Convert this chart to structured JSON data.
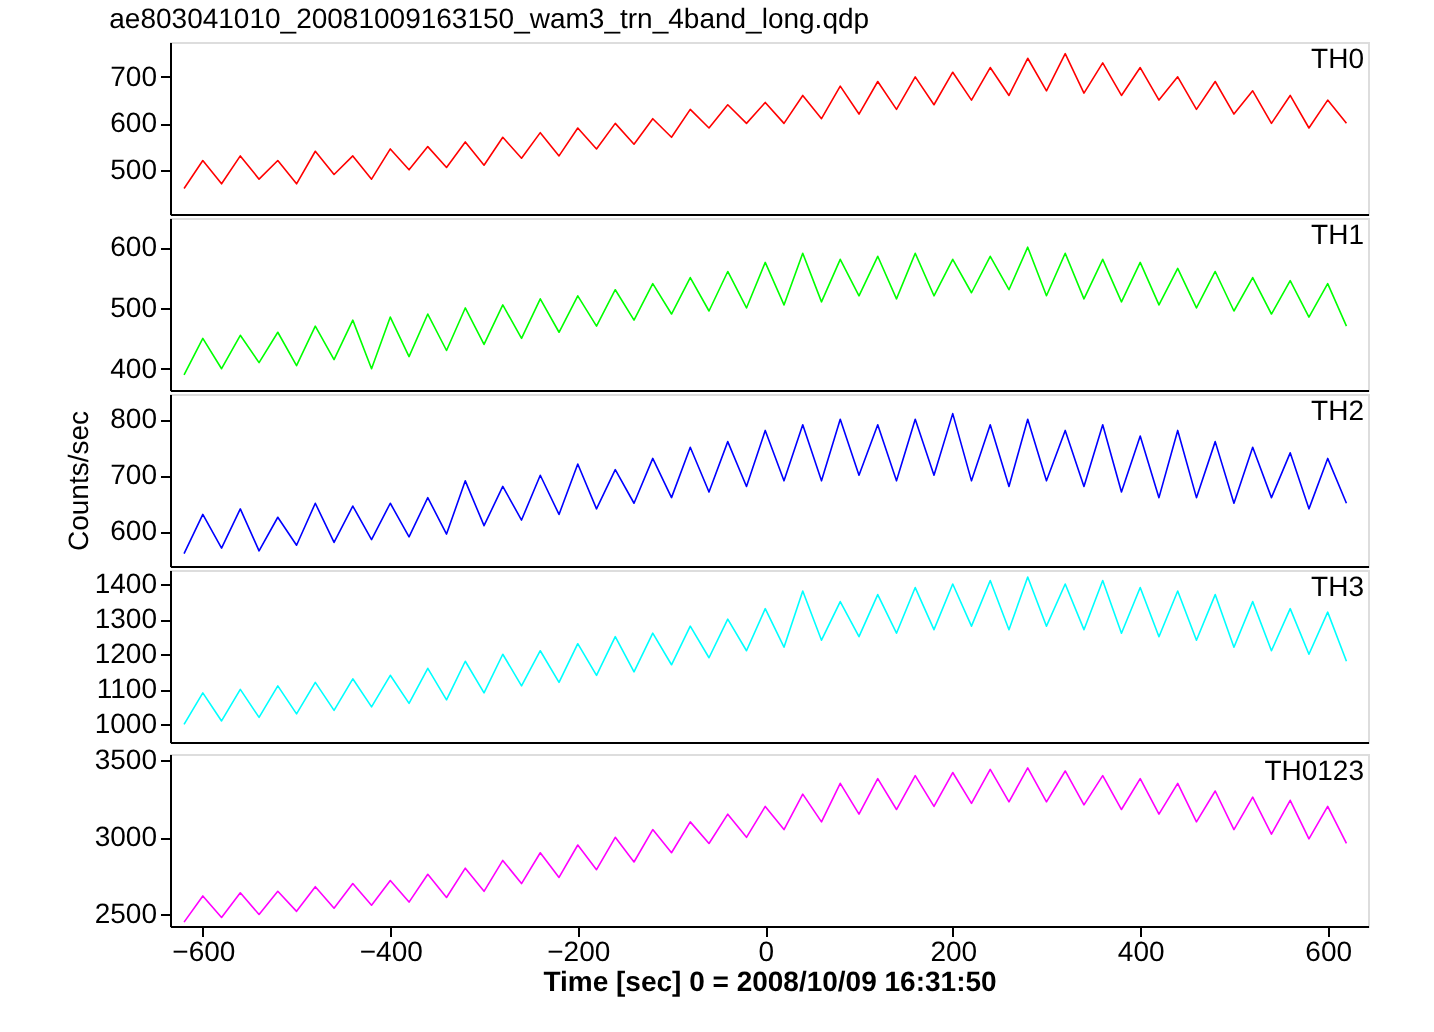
{
  "chart_data": [
    {
      "type": "line",
      "title": "ae803041010_20081009163150_wam3_trn_4band_long.qdp",
      "x": [
        -620,
        -600,
        -580,
        -560,
        -540,
        -520,
        -500,
        -480,
        -460,
        -440,
        -420,
        -400,
        -380,
        -360,
        -340,
        -320,
        -300,
        -280,
        -260,
        -240,
        -220,
        -200,
        -180,
        -160,
        -140,
        -120,
        -100,
        -80,
        -60,
        -40,
        -20,
        0,
        20,
        40,
        60,
        80,
        100,
        120,
        140,
        160,
        180,
        200,
        220,
        240,
        260,
        280,
        300,
        320,
        340,
        360,
        380,
        400,
        420,
        440,
        460,
        480,
        500,
        520,
        540,
        560,
        580,
        600,
        620
      ],
      "series": [
        {
          "name": "TH0",
          "color": "#ff0000",
          "values": [
            460,
            520,
            470,
            530,
            480,
            520,
            470,
            540,
            490,
            530,
            480,
            545,
            500,
            550,
            505,
            560,
            510,
            570,
            525,
            580,
            530,
            590,
            545,
            600,
            555,
            610,
            570,
            630,
            590,
            640,
            600,
            645,
            600,
            660,
            610,
            680,
            620,
            690,
            630,
            700,
            640,
            710,
            650,
            720,
            660,
            740,
            670,
            750,
            665,
            730,
            660,
            720,
            650,
            700,
            630,
            690,
            620,
            670,
            600,
            660,
            590,
            650,
            600
          ]
        }
      ],
      "xlim": [
        -635,
        643
      ],
      "xticks": [
        -600,
        -400,
        -200,
        0,
        200,
        400,
        600
      ],
      "ylim": [
        405,
        775
      ],
      "yticks": [
        500,
        600,
        700
      ],
      "tick_labels": "y",
      "legend": false,
      "grid": false
    },
    {
      "type": "line",
      "x": [
        -620,
        -600,
        -580,
        -560,
        -540,
        -520,
        -500,
        -480,
        -460,
        -440,
        -420,
        -400,
        -380,
        -360,
        -340,
        -320,
        -300,
        -280,
        -260,
        -240,
        -220,
        -200,
        -180,
        -160,
        -140,
        -120,
        -100,
        -80,
        -60,
        -40,
        -20,
        0,
        20,
        40,
        60,
        80,
        100,
        120,
        140,
        160,
        180,
        200,
        220,
        240,
        260,
        280,
        300,
        320,
        340,
        360,
        380,
        400,
        420,
        440,
        460,
        480,
        500,
        520,
        540,
        560,
        580,
        600,
        620
      ],
      "series": [
        {
          "name": "TH1",
          "color": "#00ff00",
          "values": [
            390,
            450,
            400,
            455,
            410,
            460,
            405,
            470,
            415,
            480,
            400,
            485,
            420,
            490,
            430,
            500,
            440,
            505,
            450,
            515,
            460,
            520,
            470,
            530,
            480,
            540,
            490,
            550,
            495,
            560,
            500,
            575,
            505,
            590,
            510,
            580,
            520,
            585,
            515,
            590,
            520,
            580,
            525,
            585,
            530,
            600,
            520,
            590,
            515,
            580,
            510,
            575,
            505,
            565,
            500,
            560,
            495,
            550,
            490,
            545,
            485,
            540,
            470
          ]
        }
      ],
      "xlim": [
        -635,
        643
      ],
      "xticks": [
        -600,
        -400,
        -200,
        0,
        200,
        400,
        600
      ],
      "ylim": [
        365,
        648
      ],
      "yticks": [
        400,
        500,
        600
      ],
      "tick_labels": "y",
      "legend": false,
      "grid": false
    },
    {
      "type": "line",
      "ylabel": "Counts/sec",
      "x": [
        -620,
        -600,
        -580,
        -560,
        -540,
        -520,
        -500,
        -480,
        -460,
        -440,
        -420,
        -400,
        -380,
        -360,
        -340,
        -320,
        -300,
        -280,
        -260,
        -240,
        -220,
        -200,
        -180,
        -160,
        -140,
        -120,
        -100,
        -80,
        -60,
        -40,
        -20,
        0,
        20,
        40,
        60,
        80,
        100,
        120,
        140,
        160,
        180,
        200,
        220,
        240,
        260,
        280,
        300,
        320,
        340,
        360,
        380,
        400,
        420,
        440,
        460,
        480,
        500,
        520,
        540,
        560,
        580,
        600,
        620
      ],
      "series": [
        {
          "name": "TH2",
          "color": "#0000ff",
          "values": [
            560,
            630,
            570,
            640,
            565,
            625,
            575,
            650,
            580,
            645,
            585,
            650,
            590,
            660,
            595,
            690,
            610,
            680,
            620,
            700,
            630,
            720,
            640,
            710,
            650,
            730,
            660,
            750,
            670,
            760,
            680,
            780,
            690,
            790,
            690,
            800,
            700,
            790,
            690,
            800,
            700,
            810,
            690,
            790,
            680,
            800,
            690,
            780,
            680,
            790,
            670,
            770,
            660,
            780,
            660,
            760,
            650,
            750,
            660,
            740,
            640,
            730,
            650
          ]
        }
      ],
      "xlim": [
        -635,
        643
      ],
      "xticks": [
        -600,
        -400,
        -200,
        0,
        200,
        400,
        600
      ],
      "ylim": [
        538,
        845
      ],
      "yticks": [
        600,
        700,
        800
      ],
      "tick_labels": "y",
      "legend": false,
      "grid": false
    },
    {
      "type": "line",
      "x": [
        -620,
        -600,
        -580,
        -560,
        -540,
        -520,
        -500,
        -480,
        -460,
        -440,
        -420,
        -400,
        -380,
        -360,
        -340,
        -320,
        -300,
        -280,
        -260,
        -240,
        -220,
        -200,
        -180,
        -160,
        -140,
        -120,
        -100,
        -80,
        -60,
        -40,
        -20,
        0,
        20,
        40,
        60,
        80,
        100,
        120,
        140,
        160,
        180,
        200,
        220,
        240,
        260,
        280,
        300,
        320,
        340,
        360,
        380,
        400,
        420,
        440,
        460,
        480,
        500,
        520,
        540,
        560,
        580,
        600,
        620
      ],
      "series": [
        {
          "name": "TH3",
          "color": "#00ffff",
          "values": [
            1000,
            1090,
            1010,
            1100,
            1020,
            1110,
            1030,
            1120,
            1040,
            1130,
            1050,
            1140,
            1060,
            1160,
            1070,
            1180,
            1090,
            1200,
            1110,
            1210,
            1120,
            1230,
            1140,
            1250,
            1150,
            1260,
            1170,
            1280,
            1190,
            1300,
            1210,
            1330,
            1220,
            1380,
            1240,
            1350,
            1250,
            1370,
            1260,
            1390,
            1270,
            1400,
            1280,
            1410,
            1270,
            1420,
            1280,
            1400,
            1270,
            1410,
            1260,
            1390,
            1250,
            1380,
            1240,
            1370,
            1220,
            1350,
            1210,
            1330,
            1200,
            1320,
            1180
          ]
        }
      ],
      "xlim": [
        -635,
        643
      ],
      "xticks": [
        -600,
        -400,
        -200,
        0,
        200,
        400,
        600
      ],
      "ylim": [
        950,
        1440
      ],
      "yticks": [
        1000,
        1100,
        1200,
        1300,
        1400
      ],
      "tick_labels": "y",
      "legend": false,
      "grid": false
    },
    {
      "type": "line",
      "xlabel": "Time [sec] 0 = 2008/10/09 16:31:50",
      "x": [
        -620,
        -600,
        -580,
        -560,
        -540,
        -520,
        -500,
        -480,
        -460,
        -440,
        -420,
        -400,
        -380,
        -360,
        -340,
        -320,
        -300,
        -280,
        -260,
        -240,
        -220,
        -200,
        -180,
        -160,
        -140,
        -120,
        -100,
        -80,
        -60,
        -40,
        -20,
        0,
        20,
        40,
        60,
        80,
        100,
        120,
        140,
        160,
        180,
        200,
        220,
        240,
        260,
        280,
        300,
        320,
        340,
        360,
        380,
        400,
        420,
        440,
        460,
        480,
        500,
        520,
        540,
        560,
        580,
        600,
        620
      ],
      "series": [
        {
          "name": "TH0123",
          "color": "#ff00ff",
          "values": [
            2450,
            2620,
            2480,
            2640,
            2500,
            2650,
            2520,
            2680,
            2540,
            2700,
            2560,
            2720,
            2580,
            2760,
            2610,
            2800,
            2650,
            2850,
            2700,
            2900,
            2740,
            2950,
            2790,
            3000,
            2840,
            3050,
            2900,
            3100,
            2960,
            3150,
            3000,
            3200,
            3050,
            3280,
            3100,
            3350,
            3150,
            3380,
            3180,
            3400,
            3200,
            3420,
            3220,
            3440,
            3230,
            3450,
            3230,
            3430,
            3210,
            3400,
            3180,
            3380,
            3150,
            3350,
            3100,
            3300,
            3050,
            3260,
            3020,
            3240,
            2990,
            3200,
            2960
          ]
        }
      ],
      "xlim": [
        -635,
        643
      ],
      "xticks": [
        -600,
        -400,
        -200,
        0,
        200,
        400,
        600
      ],
      "ylim": [
        2425,
        3540
      ],
      "yticks": [
        2500,
        3000,
        3500
      ],
      "legend": false,
      "grid": false
    }
  ]
}
